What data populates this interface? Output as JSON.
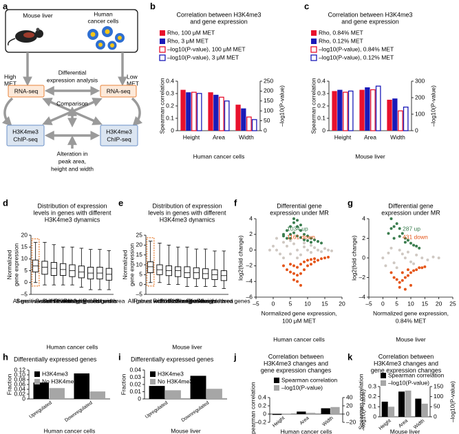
{
  "panels": [
    "a",
    "b",
    "c",
    "d",
    "e",
    "f",
    "g",
    "h",
    "i",
    "j",
    "k"
  ],
  "diagram": {
    "labels": [
      "Mouse liver",
      [
        "Human",
        "cancer cells"
      ],
      [
        "High",
        "MET"
      ],
      [
        "Low",
        "MET"
      ],
      [
        "Differential",
        "expression analysis"
      ],
      "RNA-seq",
      "RNA-seq",
      "Comparison",
      [
        "H3K4me3",
        "ChIP-seq"
      ],
      [
        "H3K4me3",
        "ChIP-seq"
      ],
      [
        "Alteration in",
        "peak area,",
        "height and width"
      ]
    ]
  },
  "chart_data": [
    {
      "type": "bar",
      "title": [
        "Correlation between H3K4me3",
        "and gene expression"
      ],
      "categories": [
        "Height",
        "Area",
        "Width"
      ],
      "series": [
        {
          "name": "Rho, 100 μM MET",
          "color": "#e8112d",
          "values": [
            0.33,
            0.31,
            0.21
          ]
        },
        {
          "name": "Rho, 3 μM MET",
          "color": "#1a1ab8",
          "values": [
            0.31,
            0.29,
            0.18
          ]
        },
        {
          "name": "–log10(P-value), 100 μM MET",
          "color": "#e8112d",
          "style": "outline",
          "axis": "y2",
          "values": [
            194,
            169,
            69
          ]
        },
        {
          "name": "–log10(P-value), 3 μM MET",
          "color": "#1a1ab8",
          "style": "outline",
          "axis": "y2",
          "values": [
            188,
            150,
            56
          ]
        }
      ],
      "ylabel": "Spearman correlation",
      "y2label": "–log10(P-value)",
      "ylim": [
        0,
        0.4
      ],
      "yticks": [
        0,
        0.1,
        0.2,
        0.3,
        0.4
      ],
      "y2lim": [
        0,
        250
      ],
      "y2ticks": [
        0,
        50,
        100,
        150,
        200,
        250
      ],
      "caption": "Human cancer cells"
    },
    {
      "type": "bar",
      "title": [
        "Correlation between H3K4me3",
        "and gene expression"
      ],
      "categories": [
        "Height",
        "Area",
        "Width"
      ],
      "series": [
        {
          "name": "Rho, 0.84% MET",
          "color": "#e8112d",
          "values": [
            0.32,
            0.33,
            0.25
          ]
        },
        {
          "name": "Rho, 0.12% MET",
          "color": "#1a1ab8",
          "values": [
            0.33,
            0.35,
            0.26
          ]
        },
        {
          "name": "–log10(P-value), 0.84% MET",
          "color": "#e8112d",
          "style": "outline",
          "axis": "y2",
          "values": [
            233,
            248,
            120
          ]
        },
        {
          "name": "–log10(P-value), 0.12% MET",
          "color": "#1a1ab8",
          "style": "outline",
          "axis": "y2",
          "values": [
            240,
            270,
            143
          ]
        }
      ],
      "ylabel": "Spearman correlation",
      "y2label": "–log10(P-value)",
      "ylim": [
        0,
        0.4
      ],
      "yticks": [
        0,
        0.1,
        0.2,
        0.3,
        0.4
      ],
      "y2lim": [
        0,
        300
      ],
      "y2ticks": [
        0,
        100,
        200,
        300
      ],
      "caption": "Mouse liver"
    },
    {
      "type": "box",
      "title": [
        "Distribution of expression",
        "levels in genes with different",
        "H3K4me3 dynamics"
      ],
      "ylabel": [
        "Normalized",
        "gene expression"
      ],
      "categories": [
        "Sensitive width",
        "All genes with H3K4me3",
        "Sensitive area",
        "Sensitive height",
        "Robust height",
        "Robust genes",
        "All expressed genes",
        "Robust width",
        "Robust area"
      ],
      "min": [
        0,
        -1,
        -1,
        -1,
        -1,
        -2,
        -3,
        -3,
        -3
      ],
      "q1": [
        4.5,
        3.5,
        3,
        3,
        2.5,
        2,
        1.5,
        1.5,
        1
      ],
      "median": [
        7,
        6.5,
        6,
        5.5,
        5,
        4.5,
        4,
        4,
        3.5
      ],
      "q3": [
        9.5,
        9,
        8.5,
        8,
        7.5,
        7,
        6.5,
        6.5,
        6
      ],
      "max": [
        17,
        17,
        16,
        15,
        15,
        14.5,
        14,
        14,
        13.5
      ],
      "ylim": [
        -5,
        20
      ],
      "yticks": [
        {
          "value": -5,
          "label": "–5"
        },
        0,
        5,
        10,
        15,
        20
      ],
      "highlight_color": "#e8833a",
      "caption": "Human cancer cells"
    },
    {
      "type": "box",
      "title": [
        "Distribution of expression",
        "levels in genes with different",
        "H3K4me3 dynamics"
      ],
      "ylabel": [
        "Normalized",
        "gene expression"
      ],
      "categories": [
        "Robust width",
        "All genes with H3K4me3",
        "Robust area",
        "Robust height",
        "Robust genes",
        "Sensitive height",
        "Sensitive width",
        "Sensitive area",
        "All expressed genes"
      ],
      "min": [
        1,
        1,
        0,
        0,
        -1,
        -1,
        -1,
        -1,
        -2
      ],
      "q1": [
        6,
        5,
        4.5,
        4,
        3.5,
        3,
        3,
        2.5,
        2
      ],
      "median": [
        9,
        7.5,
        7,
        7,
        6,
        6,
        5.5,
        5,
        4.5
      ],
      "q3": [
        11.5,
        10,
        9.5,
        9,
        9,
        8.5,
        8,
        7.5,
        7
      ],
      "max": [
        22,
        21,
        20,
        19,
        19,
        18,
        18,
        17,
        17
      ],
      "ylim": [
        -5,
        25
      ],
      "yticks": [
        {
          "value": -5,
          "label": "–5"
        },
        0,
        5,
        10,
        15,
        20,
        25
      ],
      "highlight_color": "#e8833a",
      "caption": "Mouse liver"
    },
    {
      "type": "scatter",
      "title": [
        "Differential gene",
        "expression under MR"
      ],
      "xlabel": [
        "Normalized gene expression,",
        "100 μM MET"
      ],
      "ylabel": "log2(fold change)",
      "caption": "Human cancer cells",
      "xlim": [
        -5,
        20
      ],
      "xticks": [
        {
          "value": -5,
          "label": "–5"
        },
        0,
        5,
        10,
        15,
        20
      ],
      "ylim": [
        -6,
        4
      ],
      "yticks": [
        {
          "value": -6,
          "label": "–6"
        },
        {
          "value": -4,
          "label": "–4"
        },
        {
          "value": -2,
          "label": "–2"
        },
        0,
        2,
        4
      ],
      "series": [
        {
          "color": "#cfc8c2",
          "x": [
            0,
            1,
            2,
            3,
            4,
            5,
            6,
            7,
            8,
            9,
            10,
            11,
            12,
            13,
            14,
            15,
            16,
            17,
            3,
            5,
            7,
            9,
            11,
            -1,
            1
          ],
          "values": [
            0.5,
            0,
            -0.5,
            1,
            0.5,
            -0.5,
            0.8,
            0,
            -0.6,
            0.4,
            0,
            -0.3,
            0.3,
            0,
            -0.2,
            0.2,
            0,
            -0.1,
            -1,
            1.2,
            -1,
            0.9,
            0.6,
            0,
            1.5
          ]
        },
        {
          "color": "#3b7d4f",
          "x": [
            3,
            4,
            5,
            6,
            7,
            8,
            9,
            10,
            11,
            12,
            5,
            6,
            7,
            8,
            4,
            9,
            10,
            13,
            6,
            7,
            3,
            5,
            11,
            14,
            8
          ],
          "values": [
            2,
            2.5,
            3,
            3.5,
            3,
            2.5,
            2,
            1.8,
            1.5,
            1.3,
            2,
            2.2,
            1.8,
            1.6,
            1.5,
            1.3,
            1.2,
            1.1,
            4,
            3.8,
            1.8,
            1.5,
            1,
            0.9,
            3.2
          ]
        },
        {
          "color": "#e5561a",
          "x": [
            3,
            4,
            5,
            6,
            7,
            8,
            9,
            10,
            11,
            12,
            13,
            14,
            15,
            16,
            5,
            6,
            7,
            8,
            9,
            10,
            11,
            7,
            8,
            6,
            12
          ],
          "values": [
            -2,
            -2.5,
            -2.8,
            -3,
            -3.2,
            -3,
            -2.5,
            -2,
            -1.8,
            -1.5,
            -1.3,
            -1.1,
            -1,
            -0.9,
            -1.8,
            -2,
            -2.2,
            -1.8,
            -1.5,
            -1.3,
            -1.2,
            -4,
            -4.5,
            -3.8,
            -1.1
          ]
        }
      ],
      "annotations": [
        {
          "text": "1034 up",
          "color": "#3b7d4f"
        },
        {
          "text": "1161 down",
          "color": "#e5561a"
        }
      ]
    },
    {
      "type": "scatter",
      "title": [
        "Differential gene",
        "expression under MR"
      ],
      "xlabel": [
        "Normalized gene expression,",
        "0.84% MET"
      ],
      "ylabel": "log2(fold change)",
      "caption": "Mouse liver",
      "xlim": [
        -5,
        25
      ],
      "xticks": [
        {
          "value": -5,
          "label": "–5"
        },
        0,
        5,
        10,
        15,
        20,
        25
      ],
      "ylim": [
        -4,
        4
      ],
      "yticks": [
        {
          "value": -4,
          "label": "–4"
        },
        {
          "value": -2,
          "label": "–2"
        },
        0,
        2,
        4
      ],
      "series": [
        {
          "color": "#cfc8c2",
          "x": [
            0,
            2,
            4,
            6,
            8,
            10,
            12,
            14,
            16,
            18,
            20,
            3,
            5,
            7,
            9,
            11,
            1
          ],
          "values": [
            0,
            0.5,
            -0.5,
            0.8,
            0,
            -0.4,
            0.3,
            0,
            -0.2,
            0.1,
            0,
            1,
            -1,
            0.4,
            0.6,
            -0.6,
            -0.8
          ]
        },
        {
          "color": "#3b7d4f",
          "x": [
            2,
            3,
            4,
            5,
            6,
            7,
            8,
            9,
            10,
            11,
            4,
            6,
            8,
            3,
            12,
            13
          ],
          "values": [
            2.5,
            3,
            3.2,
            3.5,
            3,
            2.5,
            2,
            1.8,
            1.5,
            1.3,
            2,
            2.2,
            1.6,
            4,
            1.2,
            1
          ]
        },
        {
          "color": "#e5561a",
          "x": [
            3,
            4,
            5,
            6,
            7,
            8,
            9,
            10,
            11,
            12,
            13,
            14,
            15,
            6,
            8,
            10,
            7,
            9
          ],
          "values": [
            -1.5,
            -2,
            -2.2,
            -2.5,
            -2.3,
            -2,
            -1.8,
            -1.5,
            -1.3,
            -1.2,
            -1,
            -1,
            -0.9,
            -3,
            -3.2,
            -2.8,
            -1.5,
            -1.2
          ]
        }
      ],
      "annotations": [
        {
          "text": "287 up",
          "color": "#3b7d4f"
        },
        {
          "text": "431 down",
          "color": "#e5561a"
        }
      ]
    },
    {
      "type": "bar",
      "title": "Differentially expressed genes",
      "categories": [
        "Upregulated",
        "Downregulated"
      ],
      "series": [
        {
          "name": "H3K4me3",
          "color": "#000000",
          "values": [
            0.068,
            0.106
          ]
        },
        {
          "name": "No H3K4me3",
          "color": "#a6a6a6",
          "values": [
            0.045,
            0.031
          ]
        }
      ],
      "ylabel": "Fraction",
      "ylim": [
        0,
        0.12
      ],
      "yticks": [
        0,
        0.02,
        0.04,
        0.06,
        0.08,
        {
          "value": 0.1,
          "label": "0.10"
        },
        0.12
      ],
      "caption": "Human cancer cells"
    },
    {
      "type": "bar",
      "title": "Differentially expressed genes",
      "categories": [
        "Upregulated",
        "Downregulated"
      ],
      "series": [
        {
          "name": "H3K4me3",
          "color": "#000000",
          "values": [
            0.018,
            0.032
          ]
        },
        {
          "name": "No H3K4me3",
          "color": "#a6a6a6",
          "values": [
            0.012,
            0.014
          ]
        }
      ],
      "ylabel": "Fraction",
      "ylim": [
        0,
        0.04
      ],
      "yticks": [
        0,
        0.01,
        0.02,
        0.03,
        0.04
      ],
      "caption": "Mouse liver"
    },
    {
      "type": "bar",
      "title": [
        "Correlation between",
        "H3K4me3 changes and",
        "gene expression changes"
      ],
      "categories": [
        "Height",
        "Area",
        "Width"
      ],
      "series": [
        {
          "name": "Spearman correlation",
          "color": "#000000",
          "values": [
            -0.02,
            0.06,
            0.14
          ]
        },
        {
          "name": "–log10(P-value)",
          "color": "#a6a6a6",
          "axis": "y2",
          "values": [
            1,
            3,
            17
          ]
        }
      ],
      "ylabel": [
        "Spearman correlation"
      ],
      "y2label": "–log10(P-value)",
      "ylim": [
        -0.2,
        0.4
      ],
      "yticks": [
        {
          "value": -0.2,
          "label": "–0.2"
        },
        0,
        0.2,
        0.4
      ],
      "y2lim": [
        -20,
        40
      ],
      "y2ticks": [
        {
          "value": -20,
          "label": "–20"
        },
        0,
        20,
        40
      ],
      "caption": "Human cancer cells"
    },
    {
      "type": "bar",
      "title": [
        "Correlation between",
        "H3K4me3 changes and",
        "gene expression changes"
      ],
      "categories": [
        "Height",
        "Area",
        "Width"
      ],
      "series": [
        {
          "name": "Spearman correlation",
          "color": "#000000",
          "values": [
            0.15,
            0.25,
            0.18
          ]
        },
        {
          "name": "–log10(P-value)",
          "color": "#a6a6a6",
          "axis": "y2",
          "values": [
            50,
            130,
            65
          ]
        }
      ],
      "ylabel": "Spearman correlation",
      "y2label": "–log10(P-value)",
      "ylim": [
        0,
        0.3
      ],
      "yticks": [
        0,
        0.1,
        0.2,
        0.3
      ],
      "y2lim": [
        0,
        150
      ],
      "y2ticks": [
        0,
        50,
        100,
        150
      ],
      "caption": "Mouse liver"
    }
  ]
}
